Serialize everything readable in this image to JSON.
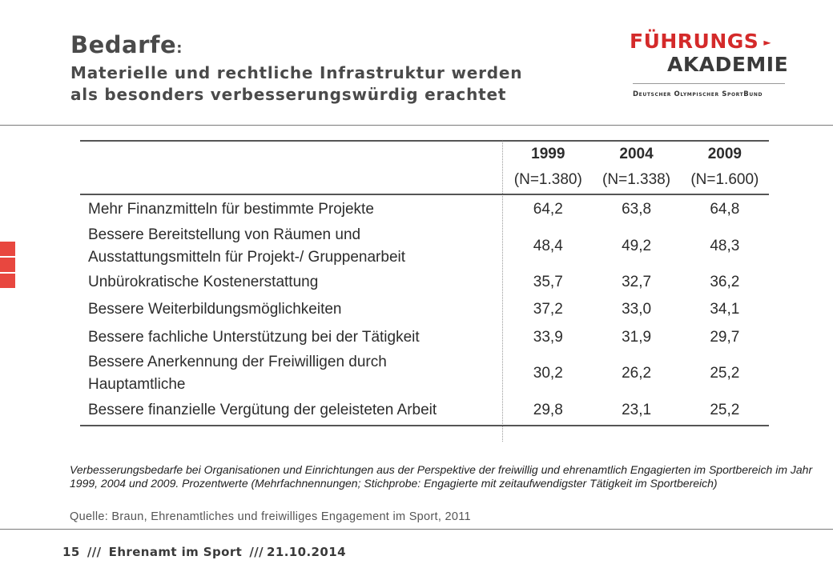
{
  "header": {
    "title": "Bedarfe",
    "title_colon": ":",
    "subtitle_line1": "Materielle und rechtliche Infrastruktur werden",
    "subtitle_line2": "als besonders verbesserungswürdig erachtet"
  },
  "logo": {
    "line1": "FÜHRUNGS",
    "line2": "AKADEMIE",
    "tagline": "Deutscher Olympischer SportBund",
    "arrow_icon": "arrow-right-icon"
  },
  "side_squares_color": "#e8473f",
  "table": {
    "years": [
      "1999",
      "2004",
      "2009"
    ],
    "n_values": [
      "(N=1.380)",
      "(N=1.338)",
      "(N=1.600)"
    ],
    "rows": [
      {
        "label": "Mehr Finanzmitteln für bestimmte Projekte",
        "label2": "",
        "values": [
          "64,2",
          "63,8",
          "64,8"
        ]
      },
      {
        "label": "Bessere Bereitstellung von Räumen und",
        "label2": "Ausstattungsmitteln für Projekt-/ Gruppenarbeit",
        "values": [
          "48,4",
          "49,2",
          "48,3"
        ]
      },
      {
        "label": "Unbürokratische Kostenerstattung",
        "label2": "",
        "values": [
          "35,7",
          "32,7",
          "36,2"
        ]
      },
      {
        "label": "Bessere Weiterbildungsmöglichkeiten",
        "label2": "",
        "values": [
          "37,2",
          "33,0",
          "34,1"
        ]
      },
      {
        "label": "Bessere fachliche Unterstützung bei der Tätigkeit",
        "label2": "",
        "values": [
          "33,9",
          "31,9",
          "29,7"
        ]
      },
      {
        "label": "Bessere Anerkennung der Freiwilligen durch",
        "label2": "Hauptamtliche",
        "values": [
          "30,2",
          "26,2",
          "25,2"
        ]
      },
      {
        "label": "Bessere finanzielle Vergütung der geleisteten Arbeit",
        "label2": "",
        "values": [
          "29,8",
          "23,1",
          "25,2"
        ]
      }
    ]
  },
  "caption": "Verbesserungsbedarfe bei Organisationen und Einrichtungen aus der Perspektive der freiwillig und ehrenamtlich Engagierten im Sportbereich im Jahr 1999, 2004 und 2009. Prozentwerte (Mehrfachnennungen; Stichprobe: Engagierte mit zeitaufwendigster Tätigkeit im Sportbereich)",
  "source": "Quelle: Braun, Ehrenamtliches und freiwilliges Engagement im Sport, 2011",
  "footer": {
    "page": "15",
    "sep": "///",
    "topic": "Ehrenamt im Sport",
    "date_prefix": "///",
    "date": "21.10.2014"
  }
}
